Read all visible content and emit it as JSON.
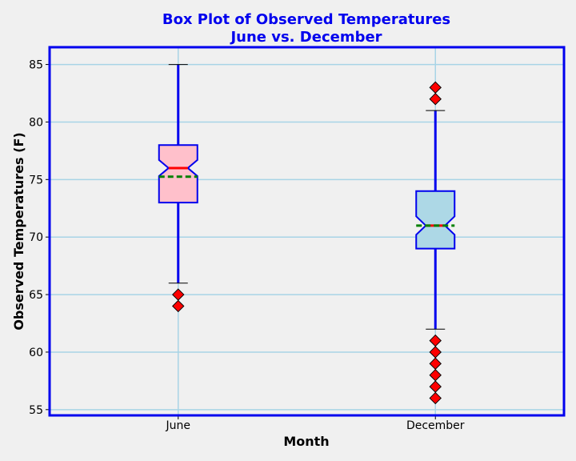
{
  "chart_data": {
    "type": "box",
    "title_line1": "Box Plot of Observed Temperatures",
    "title_line2": "June vs. December",
    "xlabel": "Month",
    "ylabel": "Observed Temperatures (F)",
    "ylim": [
      54.5,
      86.5
    ],
    "yticks": [
      55,
      60,
      65,
      70,
      75,
      80,
      85
    ],
    "grid": true,
    "notched": true,
    "categories": [
      "June",
      "December"
    ],
    "boxes": [
      {
        "name": "June",
        "whisker_low": 66,
        "q1": 73,
        "median": 76,
        "mean": 75.25,
        "q3": 78,
        "whisker_high": 85,
        "notch_low": 75.3,
        "notch_high": 76.7,
        "fliers": [
          65,
          64
        ],
        "fill": "#ffc0cb"
      },
      {
        "name": "December",
        "whisker_low": 62,
        "q1": 69,
        "median": 71,
        "mean": 71,
        "q3": 74,
        "whisker_high": 81,
        "notch_low": 70.2,
        "notch_high": 71.8,
        "fliers": [
          83,
          82,
          61,
          60,
          59,
          58,
          57,
          56
        ],
        "fill": "#add8e6"
      }
    ],
    "colors": {
      "title": "#0000ee",
      "frame": "#0000ee",
      "whisker": "#0000ee",
      "median": "#ff0000",
      "mean": "#008000",
      "flier": "#ff0000",
      "grid": "#a8d4e6",
      "plot_bg": "#f0f0f0"
    }
  }
}
